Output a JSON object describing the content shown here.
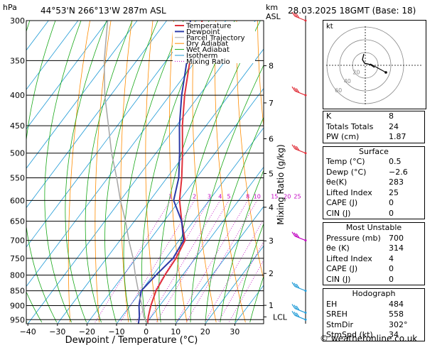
{
  "header": {
    "pressure_unit": "hPa",
    "location": "44°53'N 266°13'W 287m ASL",
    "height_unit": "km",
    "height_unit2": "ASL",
    "datetime": "28.03.2025 18GMT (Base: 18)"
  },
  "chart_data": {
    "type": "line",
    "xlabel": "Dewpoint / Temperature (°C)",
    "ylabel": "Mixing Ratio (g/kg)",
    "x_ticks": [
      -40,
      -30,
      -20,
      -10,
      0,
      10,
      20,
      30
    ],
    "pressure_levels": [
      300,
      350,
      400,
      450,
      500,
      550,
      600,
      650,
      700,
      750,
      800,
      850,
      900,
      950
    ],
    "km_ticks": [
      {
        "km": "8",
        "p": 357
      },
      {
        "km": "7",
        "p": 412
      },
      {
        "km": "6",
        "p": 473
      },
      {
        "km": "5",
        "p": 541
      },
      {
        "km": "4",
        "p": 616
      },
      {
        "km": "3",
        "p": 701
      },
      {
        "km": "2",
        "p": 795
      },
      {
        "km": "1",
        "p": 899
      },
      {
        "km": "LCL",
        "p": 940
      }
    ],
    "mixing_ratio_labels": [
      "1",
      "2",
      "3",
      "4",
      "5",
      "8",
      "10",
      "15",
      "20",
      "25"
    ],
    "legend": [
      "Temperature",
      "Dewpoint",
      "Parcel Trajectory",
      "Dry Adiabat",
      "Wet Adiabat",
      "Isotherm",
      "Mixing Ratio"
    ],
    "legend_colors": [
      "#e0303a",
      "#2c3aa8",
      "#a6a6a6",
      "#ff8c00",
      "#18a818",
      "#1e9ad6",
      "#c000c0"
    ],
    "series": [
      {
        "name": "Temperature",
        "color": "#e0303a",
        "points": [
          [
            0.5,
            965
          ],
          [
            -1,
            940
          ],
          [
            -3,
            900
          ],
          [
            -5,
            850
          ],
          [
            -6,
            800
          ],
          [
            -6.5,
            750
          ],
          [
            -8,
            700
          ],
          [
            -14,
            650
          ],
          [
            -20,
            600
          ],
          [
            -25,
            550
          ],
          [
            -31,
            500
          ],
          [
            -38,
            450
          ],
          [
            -45,
            400
          ],
          [
            -52,
            350
          ],
          [
            -58,
            300
          ]
        ]
      },
      {
        "name": "Dewpoint",
        "color": "#2c3aa8",
        "points": [
          [
            -2.6,
            965
          ],
          [
            -4,
            940
          ],
          [
            -7,
            900
          ],
          [
            -10,
            850
          ],
          [
            -9,
            800
          ],
          [
            -7.5,
            750
          ],
          [
            -8.5,
            700
          ],
          [
            -14,
            650
          ],
          [
            -22,
            600
          ],
          [
            -26,
            550
          ],
          [
            -32,
            500
          ],
          [
            -39,
            450
          ],
          [
            -46,
            400
          ],
          [
            -53,
            350
          ],
          [
            -62,
            300
          ]
        ]
      },
      {
        "name": "Parcel Trajectory",
        "color": "#a6a6a6",
        "points": [
          [
            0.5,
            965
          ],
          [
            -2.5,
            940
          ],
          [
            -6,
            900
          ],
          [
            -11,
            850
          ],
          [
            -16,
            800
          ],
          [
            -21,
            750
          ],
          [
            -27,
            700
          ],
          [
            -33,
            650
          ],
          [
            -40,
            600
          ],
          [
            -47,
            550
          ],
          [
            -55,
            500
          ],
          [
            -63,
            450
          ],
          [
            -72,
            400
          ],
          [
            -81,
            350
          ],
          [
            -90,
            300
          ]
        ]
      }
    ],
    "wind_colors": [
      "#e0303a",
      "#c000c0",
      "#1e9ad6",
      "#c8c800"
    ]
  },
  "hodograph": {
    "unit": "kt",
    "ring_labels": [
      "20",
      "40",
      "60"
    ]
  },
  "indices": [
    {
      "label": "K",
      "value": "8"
    },
    {
      "label": "Totals Totals",
      "value": "24"
    },
    {
      "label": "PW (cm)",
      "value": "1.87"
    }
  ],
  "surface": {
    "title": "Surface",
    "rows": [
      {
        "label": "Temp (°C)",
        "value": "0.5"
      },
      {
        "label": "Dewp (°C)",
        "value": "−2.6"
      },
      {
        "label": "θe(K)",
        "value": "283"
      },
      {
        "label": "Lifted Index",
        "value": "25"
      },
      {
        "label": "CAPE (J)",
        "value": "0"
      },
      {
        "label": "CIN (J)",
        "value": "0"
      }
    ]
  },
  "most_unstable": {
    "title": "Most Unstable",
    "rows": [
      {
        "label": "Pressure (mb)",
        "value": "700"
      },
      {
        "label": "θe (K)",
        "value": "314"
      },
      {
        "label": "Lifted Index",
        "value": "4"
      },
      {
        "label": "CAPE (J)",
        "value": "0"
      },
      {
        "label": "CIN (J)",
        "value": "0"
      }
    ]
  },
  "hodo_table": {
    "title": "Hodograph",
    "rows": [
      {
        "label": "EH",
        "value": "484"
      },
      {
        "label": "SREH",
        "value": "558"
      },
      {
        "label": "StmDir",
        "value": "302°"
      },
      {
        "label": "StmSpd (kt)",
        "value": "34"
      }
    ]
  },
  "credit": "© weatheronline.co.uk"
}
